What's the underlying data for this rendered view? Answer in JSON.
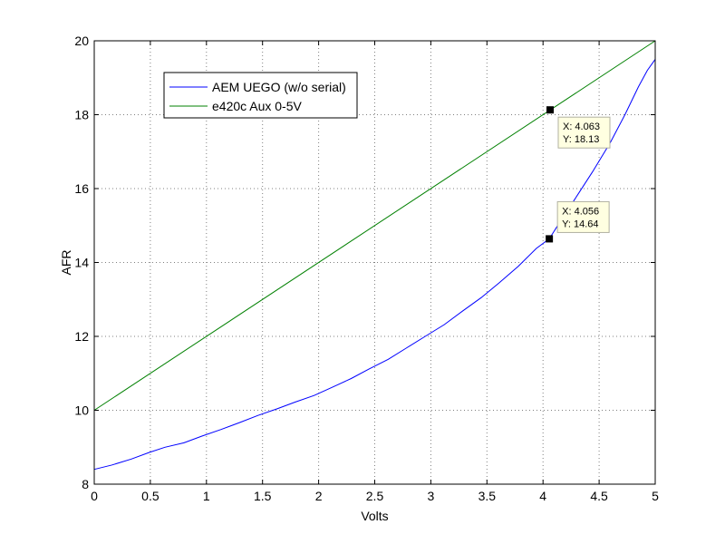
{
  "chart_data": {
    "type": "line",
    "xlabel": "Volts",
    "ylabel": "AFR",
    "xlim": [
      0,
      5
    ],
    "ylim": [
      8,
      20
    ],
    "xticks": [
      0,
      0.5,
      1,
      1.5,
      2,
      2.5,
      3,
      3.5,
      4,
      4.5,
      5
    ],
    "xtick_labels": [
      "0",
      "0.5",
      "1",
      "1.5",
      "2",
      "2.5",
      "3",
      "3.5",
      "4",
      "4.5",
      "5"
    ],
    "yticks": [
      8,
      10,
      12,
      14,
      16,
      18,
      20
    ],
    "ytick_labels": [
      "8",
      "10",
      "12",
      "14",
      "16",
      "18",
      "20"
    ],
    "grid": true,
    "legend_position": "top-left",
    "series": [
      {
        "name": "AEM UEGO (w/o serial)",
        "color": "#0000ff",
        "x": [
          0,
          0.16,
          0.33,
          0.49,
          0.63,
          0.8,
          0.96,
          1.13,
          1.3,
          1.46,
          1.63,
          1.79,
          1.96,
          2.12,
          2.29,
          2.45,
          2.62,
          2.78,
          2.95,
          3.12,
          3.28,
          3.45,
          3.61,
          3.78,
          3.94,
          4.056,
          4.12,
          4.27,
          4.44,
          4.6,
          4.73,
          4.85,
          4.93,
          5
        ],
        "y": [
          8.4,
          8.52,
          8.68,
          8.86,
          9.0,
          9.12,
          9.3,
          9.48,
          9.67,
          9.86,
          10.04,
          10.22,
          10.4,
          10.62,
          10.86,
          11.12,
          11.38,
          11.68,
          12.0,
          12.32,
          12.68,
          13.05,
          13.45,
          13.9,
          14.38,
          14.64,
          14.95,
          15.65,
          16.45,
          17.25,
          18.0,
          18.75,
          19.2,
          19.5
        ]
      },
      {
        "name": "e420c Aux 0-5V",
        "color": "#008000",
        "x": [
          0,
          5
        ],
        "y": [
          10,
          20
        ]
      }
    ],
    "annotations": [
      {
        "x": 4.063,
        "y": 18.13,
        "label_x": "X: 4.063",
        "label_y": "Y: 18.13"
      },
      {
        "x": 4.056,
        "y": 14.64,
        "label_x": "X: 4.056",
        "label_y": "Y: 14.64"
      }
    ]
  }
}
